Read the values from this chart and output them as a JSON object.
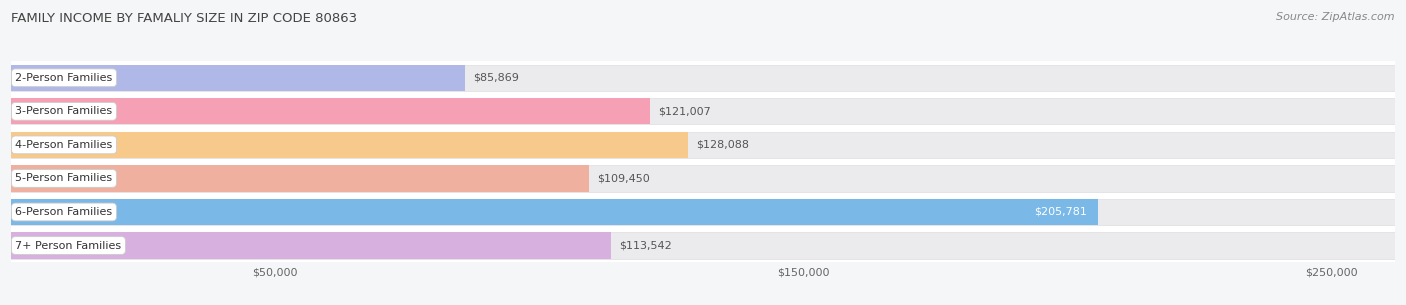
{
  "title": "FAMILY INCOME BY FAMALIY SIZE IN ZIP CODE 80863",
  "source": "Source: ZipAtlas.com",
  "categories": [
    "2-Person Families",
    "3-Person Families",
    "4-Person Families",
    "5-Person Families",
    "6-Person Families",
    "7+ Person Families"
  ],
  "values": [
    85869,
    121007,
    128088,
    109450,
    205781,
    113542
  ],
  "bar_colors": [
    "#b0b8e8",
    "#f5a0b5",
    "#f7c98a",
    "#f0b0a0",
    "#7ab8e8",
    "#d8b0e0"
  ],
  "value_labels": [
    "$85,869",
    "$121,007",
    "$128,088",
    "$109,450",
    "$205,781",
    "$113,542"
  ],
  "value_label_color_dark": "#555555",
  "value_label_color_light": "#ffffff",
  "xlim": [
    0,
    262000
  ],
  "xticks": [
    0,
    50000,
    100000,
    150000,
    200000,
    250000
  ],
  "xtick_labels": [
    "",
    "$50,000",
    "",
    "$150,000",
    "",
    "$250,000"
  ],
  "background_color": "#f5f6f8",
  "bar_bg_color": "#ebebee",
  "bar_bg_edge_color": "#d8d8dc",
  "grid_color": "#cccccc",
  "title_fontsize": 9.5,
  "source_fontsize": 8,
  "label_fontsize": 8,
  "value_fontsize": 8
}
